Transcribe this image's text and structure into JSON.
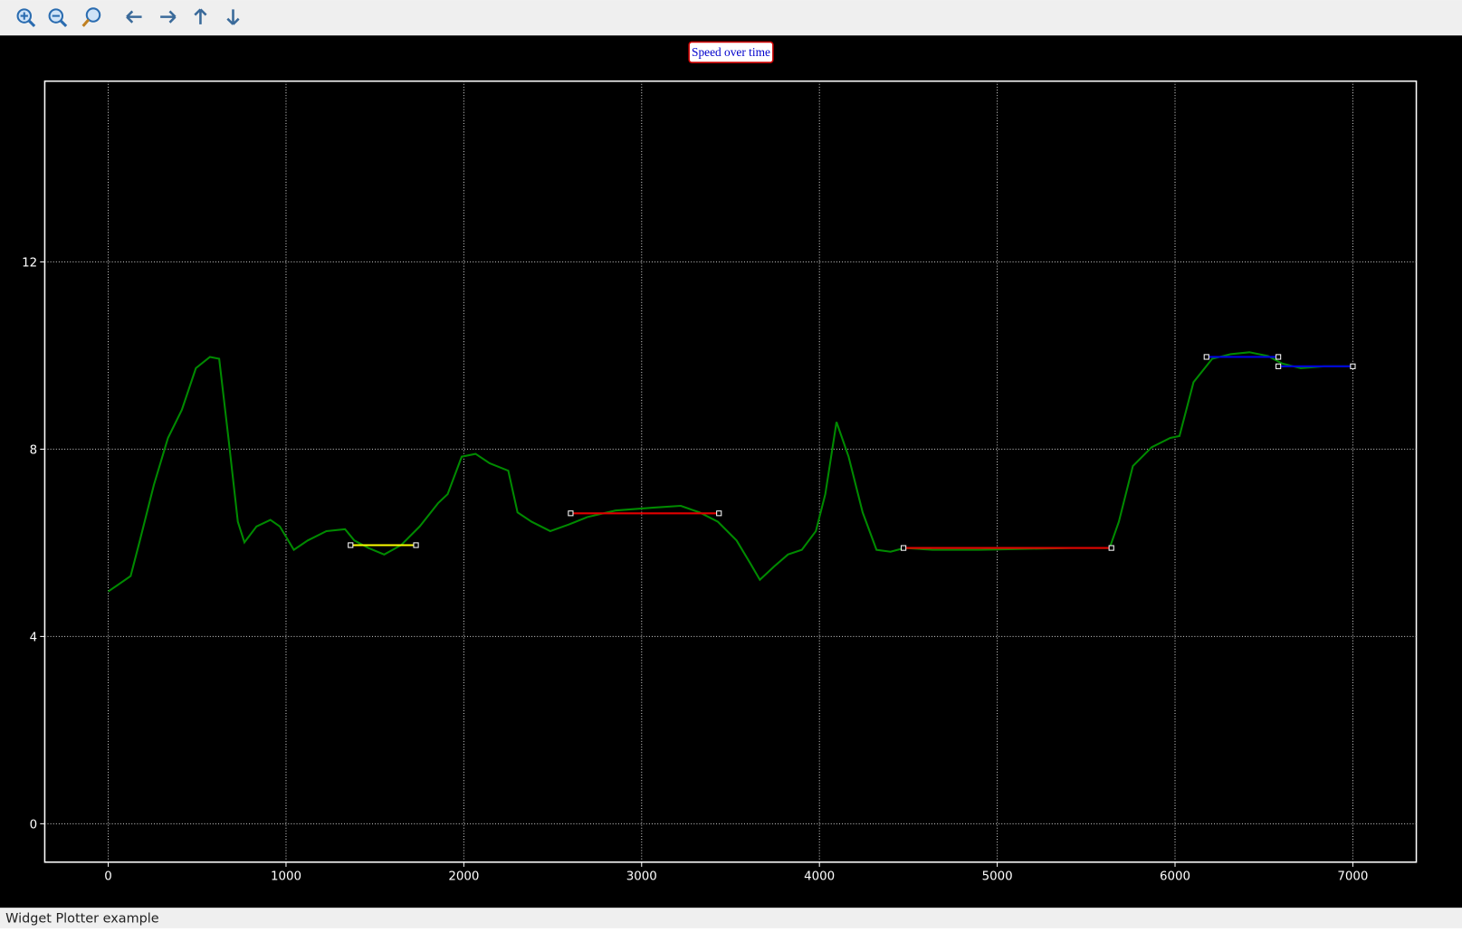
{
  "chart_data": {
    "type": "line",
    "title": "Speed over time",
    "xlim": [
      -357,
      7357
    ],
    "ylim": [
      -0.82,
      15.86
    ],
    "xticks": [
      0,
      1000,
      2000,
      3000,
      4000,
      5000,
      6000,
      7000
    ],
    "yticks": [
      0,
      4,
      8,
      12
    ],
    "grid": true,
    "series": [
      {
        "color": "#008a00",
        "x": [
          0,
          126,
          178,
          257,
          336,
          414,
          493,
          572,
          624,
          676,
          729,
          766,
          834,
          912,
          965,
          1044,
          1122,
          1227,
          1332,
          1384,
          1463,
          1552,
          1647,
          1752,
          1856,
          1909,
          1988,
          2066,
          2145,
          2250,
          2302,
          2381,
          2486,
          2590,
          2695,
          2853,
          3062,
          3220,
          3325,
          3429,
          3534,
          3613,
          3665,
          3744,
          3823,
          3901,
          3980,
          4033,
          4096,
          4164,
          4243,
          4321,
          4400,
          4479,
          4636,
          4898,
          5160,
          5422,
          5632,
          5684,
          5763,
          5868,
          5973,
          6025,
          6104,
          6209,
          6313,
          6418,
          6523,
          6602,
          6707,
          6838,
          7000
        ],
        "values": [
          4.96,
          5.29,
          6.05,
          7.24,
          8.24,
          8.84,
          9.73,
          9.97,
          9.93,
          8.24,
          6.45,
          6.01,
          6.35,
          6.49,
          6.35,
          5.85,
          6.05,
          6.25,
          6.29,
          6.05,
          5.89,
          5.75,
          5.95,
          6.35,
          6.85,
          7.04,
          7.84,
          7.9,
          7.7,
          7.54,
          6.65,
          6.45,
          6.25,
          6.39,
          6.55,
          6.69,
          6.75,
          6.79,
          6.65,
          6.45,
          6.05,
          5.55,
          5.21,
          5.49,
          5.75,
          5.85,
          6.25,
          7.04,
          8.58,
          7.84,
          6.65,
          5.85,
          5.81,
          5.89,
          5.85,
          5.85,
          5.87,
          5.89,
          5.89,
          6.45,
          7.64,
          8.04,
          8.24,
          8.28,
          9.43,
          9.93,
          10.03,
          10.07,
          9.99,
          9.83,
          9.73,
          9.77,
          9.77
        ]
      },
      {
        "color": "#ffff00",
        "x": [
          1363,
          1731
        ],
        "values": [
          5.95,
          5.95
        ]
      },
      {
        "color": "#e00000",
        "x": [
          2601,
          3435
        ],
        "values": [
          6.63,
          6.63
        ]
      },
      {
        "color": "#e00000",
        "x": [
          4473,
          5642
        ],
        "values": [
          5.89,
          5.89
        ]
      },
      {
        "color": "#0000e0",
        "x": [
          6177,
          6581
        ],
        "values": [
          9.97,
          9.97
        ]
      },
      {
        "color": "#0000e0",
        "x": [
          6581,
          7000
        ],
        "values": [
          9.77,
          9.77
        ]
      }
    ]
  },
  "status_bar": "Widget Plotter example"
}
